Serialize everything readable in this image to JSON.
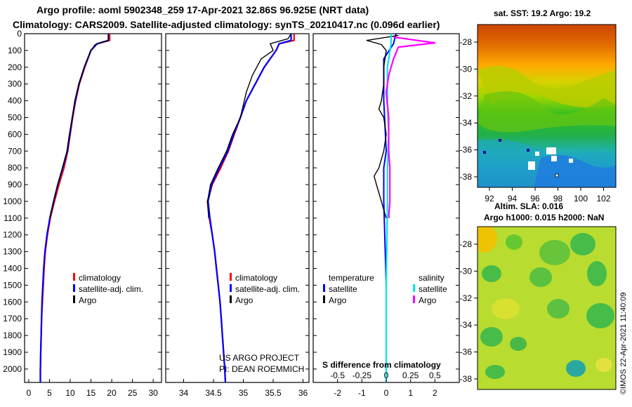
{
  "header": {
    "line1": "Argo profile: aoml 5902348_259 17-Apr-2021 32.86S 96.925E (NRT data)",
    "line2": "Climatology: CARS2009. Satellite-adjusted climatology: synTS_20210417.nc (0.096d earlier)"
  },
  "map1": {
    "title": "sat. SST: 19.2 Argo: 19.2",
    "lat_ticks": [
      "-28",
      "-30",
      "-32",
      "-34",
      "-36",
      "-38"
    ],
    "lon_ticks": [
      "92",
      "94",
      "96",
      "98",
      "100",
      "102"
    ]
  },
  "map2": {
    "title_line1": "Altim. SLA: 0.016",
    "title_line2": "Argo h1000: 0.015 h2000: NaN",
    "lat_ticks": [
      "-28",
      "-30",
      "-32",
      "-34",
      "-36",
      "-38"
    ]
  },
  "credit": "©IMOS 22-Apr-2021 11:40:09",
  "colors": {
    "climatology": "#ff0000",
    "satellite": "#0000ff",
    "argo": "#000000",
    "salinity_satellite": "#00e5ee",
    "salinity_argo": "#ff00ff"
  },
  "chart_data": [
    {
      "type": "line",
      "name": "temperature-profile",
      "xlabel": "",
      "ylabel": "",
      "ylim": [
        2080,
        0
      ],
      "xlim": [
        -1,
        32
      ],
      "x_ticks": [
        "0",
        "5",
        "10",
        "15",
        "20",
        "25",
        "30"
      ],
      "x_tick_values": [
        0,
        5,
        10,
        15,
        20,
        25,
        30
      ],
      "y_ticks": [
        0,
        100,
        200,
        300,
        400,
        500,
        600,
        700,
        800,
        900,
        1000,
        1100,
        1200,
        1300,
        1400,
        1500,
        1600,
        1700,
        1800,
        1900,
        2000
      ],
      "legend": [
        "climatology",
        "satellite-adj. clim.",
        "Argo"
      ],
      "legend_position": "lower-right",
      "series": [
        {
          "name": "climatology",
          "points": [
            [
              19.5,
              0
            ],
            [
              19.5,
              40
            ],
            [
              16.5,
              60
            ],
            [
              15,
              100
            ],
            [
              13.5,
              200
            ],
            [
              12.2,
              300
            ],
            [
              11.3,
              400
            ],
            [
              10.6,
              500
            ],
            [
              10,
              600
            ],
            [
              9.4,
              700
            ],
            [
              8.5,
              800
            ],
            [
              7.3,
              900
            ],
            [
              6.2,
              1000
            ],
            [
              5.2,
              1100
            ],
            [
              4.5,
              1200
            ],
            [
              4,
              1300
            ],
            [
              3.7,
              1400
            ],
            [
              3.5,
              1500
            ],
            [
              3.3,
              1600
            ],
            [
              3.1,
              1700
            ],
            [
              3,
              1800
            ],
            [
              2.9,
              1900
            ],
            [
              2.8,
              2000
            ],
            [
              2.8,
              2080
            ]
          ]
        },
        {
          "name": "satellite",
          "points": [
            [
              19.2,
              0
            ],
            [
              19.2,
              40
            ],
            [
              16.5,
              60
            ],
            [
              15,
              100
            ],
            [
              13.4,
              200
            ],
            [
              12.1,
              300
            ],
            [
              11.2,
              400
            ],
            [
              10.5,
              500
            ],
            [
              9.9,
              600
            ],
            [
              9.3,
              700
            ],
            [
              8.2,
              800
            ],
            [
              7,
              900
            ],
            [
              6,
              1000
            ],
            [
              5.1,
              1100
            ],
            [
              4.4,
              1200
            ],
            [
              3.9,
              1300
            ],
            [
              3.6,
              1400
            ],
            [
              3.4,
              1500
            ],
            [
              3.2,
              1600
            ],
            [
              3.1,
              1700
            ],
            [
              3,
              1800
            ],
            [
              2.9,
              1900
            ],
            [
              2.8,
              2000
            ],
            [
              2.8,
              2080
            ]
          ]
        },
        {
          "name": "Argo",
          "points": [
            [
              19.2,
              3
            ],
            [
              19.2,
              40
            ],
            [
              16,
              65
            ],
            [
              15,
              100
            ],
            [
              13.4,
              200
            ],
            [
              12.1,
              300
            ],
            [
              11.1,
              400
            ],
            [
              10.5,
              500
            ],
            [
              9.8,
              600
            ],
            [
              9.2,
              700
            ],
            [
              8.1,
              800
            ],
            [
              7,
              900
            ],
            [
              6,
              1000
            ],
            [
              5.1,
              1100
            ]
          ]
        }
      ]
    },
    {
      "type": "line",
      "name": "salinity-profile",
      "xlabel": "",
      "ylabel": "",
      "ylim": [
        2080,
        0
      ],
      "xlim": [
        33.7,
        36.1
      ],
      "x_ticks": [
        "34",
        "34.5",
        "35",
        "35.5",
        "36"
      ],
      "x_tick_values": [
        34,
        34.5,
        35,
        35.5,
        36
      ],
      "legend": [
        "climatology",
        "satellite-adj. clim.",
        "Argo"
      ],
      "legend_position": "lower-right",
      "annotation": [
        "US ARGO PROJECT",
        "PI: DEAN ROEMMICH"
      ],
      "series": [
        {
          "name": "climatology",
          "points": [
            [
              35.85,
              0
            ],
            [
              35.85,
              40
            ],
            [
              35.6,
              60
            ],
            [
              35.55,
              100
            ],
            [
              35.35,
              200
            ],
            [
              35.2,
              300
            ],
            [
              35.05,
              400
            ],
            [
              34.95,
              500
            ],
            [
              34.85,
              600
            ],
            [
              34.75,
              700
            ],
            [
              34.62,
              800
            ],
            [
              34.48,
              900
            ],
            [
              34.4,
              1000
            ],
            [
              34.43,
              1100
            ],
            [
              34.48,
              1200
            ],
            [
              34.52,
              1300
            ],
            [
              34.55,
              1400
            ],
            [
              34.58,
              1500
            ],
            [
              34.61,
              1600
            ],
            [
              34.63,
              1700
            ],
            [
              34.65,
              1800
            ],
            [
              34.67,
              1900
            ],
            [
              34.69,
              2000
            ],
            [
              34.7,
              2080
            ]
          ]
        },
        {
          "name": "satellite",
          "points": [
            [
              35.8,
              0
            ],
            [
              35.8,
              40
            ],
            [
              35.6,
              60
            ],
            [
              35.55,
              100
            ],
            [
              35.35,
              200
            ],
            [
              35.2,
              300
            ],
            [
              35.05,
              400
            ],
            [
              34.95,
              500
            ],
            [
              34.84,
              600
            ],
            [
              34.74,
              700
            ],
            [
              34.6,
              800
            ],
            [
              34.47,
              900
            ],
            [
              34.41,
              1000
            ],
            [
              34.44,
              1100
            ],
            [
              34.48,
              1200
            ],
            [
              34.52,
              1300
            ],
            [
              34.55,
              1400
            ],
            [
              34.58,
              1500
            ],
            [
              34.61,
              1600
            ],
            [
              34.63,
              1700
            ],
            [
              34.65,
              1800
            ],
            [
              34.67,
              1900
            ],
            [
              34.69,
              2000
            ],
            [
              34.7,
              2080
            ]
          ]
        },
        {
          "name": "Argo",
          "points": [
            [
              35.8,
              0
            ],
            [
              35.75,
              30
            ],
            [
              35.45,
              60
            ],
            [
              35.5,
              100
            ],
            [
              35.3,
              150
            ],
            [
              35.15,
              250
            ],
            [
              35.05,
              350
            ],
            [
              34.95,
              500
            ],
            [
              34.82,
              600
            ],
            [
              34.72,
              700
            ],
            [
              34.58,
              800
            ],
            [
              34.45,
              900
            ],
            [
              34.4,
              1000
            ],
            [
              34.42,
              1100
            ]
          ]
        }
      ]
    },
    {
      "type": "line",
      "name": "difference-from-climatology",
      "xlabel": "S difference from climatology",
      "ylabel": "",
      "ylim": [
        2080,
        0
      ],
      "xlim": [
        -3,
        3
      ],
      "x_ticks": [
        "-2",
        "-1",
        "0",
        "1",
        "2"
      ],
      "x_tick_values": [
        -2,
        -1,
        0,
        1,
        2
      ],
      "s_ticks": [
        "-0.5",
        "-0.25",
        "0",
        "0.25",
        "0.5"
      ],
      "s_tick_values": [
        -0.5,
        -0.25,
        0,
        0.25,
        0.5
      ],
      "legend_temperature": {
        "title": "temperature",
        "items": [
          "satellite",
          "Argo"
        ]
      },
      "legend_salinity": {
        "title": "salinity",
        "items": [
          "satellite",
          "Argo"
        ]
      },
      "legend_position": "lower",
      "series": [
        {
          "name": "temperature satellite",
          "points": [
            [
              0.4,
              0
            ],
            [
              0.3,
              60
            ],
            [
              -0.1,
              150
            ],
            [
              -0.1,
              400
            ],
            [
              0,
              700
            ],
            [
              -0.1,
              800
            ],
            [
              -0.1,
              1000
            ],
            [
              0,
              1500
            ],
            [
              0,
              2080
            ]
          ]
        },
        {
          "name": "temperature Argo",
          "points": [
            [
              0.5,
              10
            ],
            [
              -0.8,
              40
            ],
            [
              -0.2,
              65
            ],
            [
              0,
              100
            ],
            [
              -0.1,
              200
            ],
            [
              -0.1,
              300
            ],
            [
              -0.2,
              400
            ],
            [
              -0.3,
              450
            ],
            [
              -0.1,
              500
            ],
            [
              0,
              600
            ],
            [
              -0.1,
              700
            ],
            [
              -0.3,
              800
            ],
            [
              -0.5,
              850
            ],
            [
              -0.4,
              900
            ],
            [
              -0.3,
              950
            ],
            [
              -0.2,
              1000
            ],
            [
              -0.1,
              1050
            ],
            [
              0,
              1100
            ]
          ]
        },
        {
          "name": "salinity satellite",
          "points": [
            [
              0.2,
              0
            ],
            [
              0.2,
              60
            ],
            [
              0.05,
              200
            ],
            [
              0.05,
              400
            ],
            [
              0.1,
              600
            ],
            [
              0.05,
              800
            ],
            [
              0.05,
              1000
            ],
            [
              0,
              1500
            ],
            [
              0,
              2080
            ]
          ]
        },
        {
          "name": "salinity Argo",
          "points": [
            [
              0.3,
              20
            ],
            [
              2,
              55
            ],
            [
              0.5,
              80
            ],
            [
              0.3,
              150
            ],
            [
              0.1,
              250
            ],
            [
              0,
              350
            ],
            [
              0.1,
              500
            ],
            [
              0.1,
              700
            ],
            [
              0.15,
              800
            ],
            [
              0.15,
              1000
            ],
            [
              0.1,
              1100
            ]
          ]
        }
      ]
    },
    {
      "type": "heatmap",
      "name": "sst-map",
      "lat_range": [
        -38.6,
        -27.4
      ],
      "lon_range": [
        90.5,
        103.2
      ],
      "colormap": "jet"
    },
    {
      "type": "heatmap",
      "name": "sla-map",
      "lat_range": [
        -38.6,
        -27.4
      ],
      "lon_range": [
        90.5,
        103.2
      ],
      "colormap": "jet"
    }
  ]
}
